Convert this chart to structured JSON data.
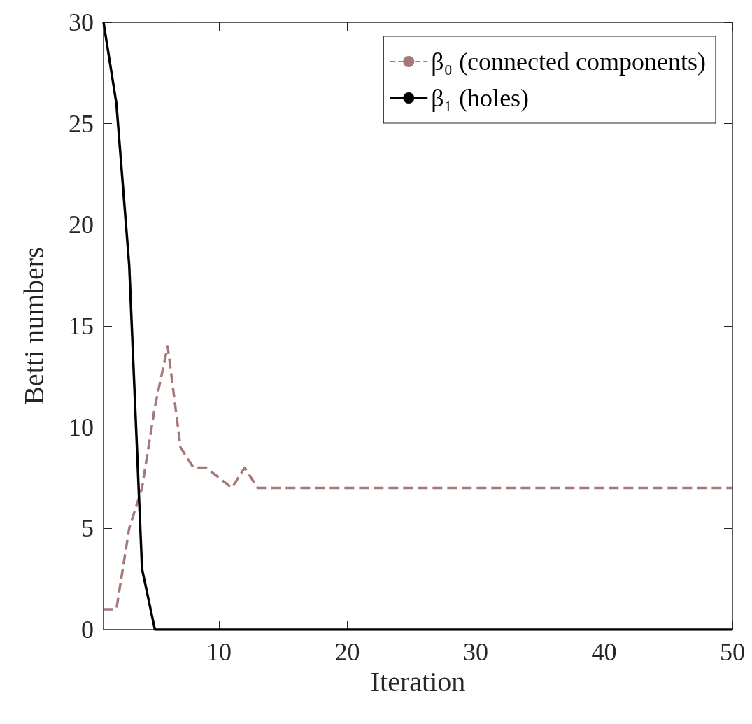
{
  "chart_data": {
    "type": "line",
    "xlabel": "Iteration",
    "ylabel": "Betti numbers",
    "x": [
      1,
      2,
      3,
      4,
      5,
      6,
      7,
      8,
      9,
      10,
      11,
      12,
      13,
      14,
      15,
      20,
      25,
      30,
      35,
      40,
      45,
      50
    ],
    "series": [
      {
        "name": "β₀ (connected components)",
        "color": "#a87878",
        "line_style": "dashed",
        "values": [
          1,
          1,
          5,
          7,
          11,
          14,
          9,
          8,
          8,
          7.5,
          7,
          8,
          7,
          7,
          7,
          7,
          7,
          7,
          7,
          7,
          7,
          7
        ]
      },
      {
        "name": "β₁ (holes)",
        "color": "#000000",
        "line_style": "solid",
        "values": [
          30,
          26,
          18,
          3,
          0,
          0,
          0,
          0,
          0,
          0,
          0,
          0,
          0,
          0,
          0,
          0,
          0,
          0,
          0,
          0,
          0,
          0
        ]
      }
    ],
    "xlim": [
      1,
      50
    ],
    "xticks": [
      10,
      20,
      30,
      40,
      50
    ],
    "ylim": [
      0,
      30
    ],
    "yticks": [
      0,
      5,
      10,
      15,
      20,
      25,
      30
    ],
    "grid": false,
    "legend": "top right",
    "marker": "none"
  }
}
